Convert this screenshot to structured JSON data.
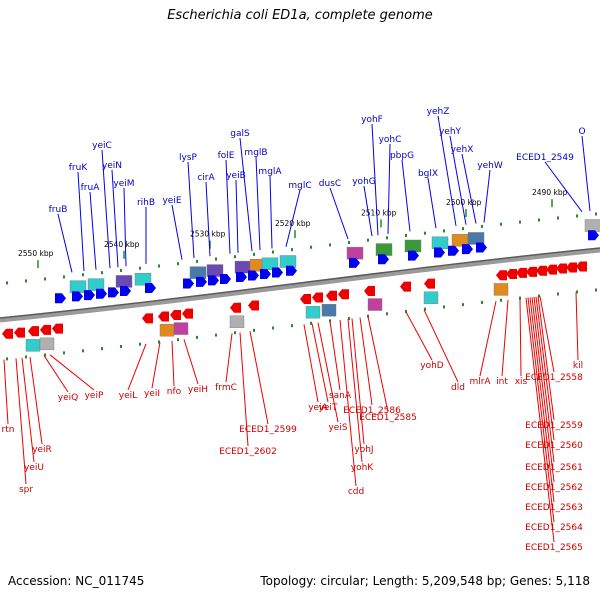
{
  "title": "Escherichia coli ED1a, complete genome",
  "footer": {
    "accession": "Accession: NC_011745",
    "summary": "Topology: circular; Length: 5,209,548 bp; Genes: 5,118"
  },
  "colors": {
    "forward_gene": "#0000ee",
    "reverse_gene": "#ee0000",
    "label_forward": "#0000cc",
    "label_reverse": "#cc0000",
    "axis": "#888888",
    "tick": "#228b22",
    "cyan_feature": "#33cccc",
    "purple_feature": "#aa55cc"
  },
  "scale_labels": [
    "2550 kbp",
    "2540 kbp",
    "2530 kbp",
    "2520 kbp",
    "2510 kbp",
    "2500 kbp",
    "2490 kbp"
  ],
  "forward_labels": [
    "fruB",
    "fruA",
    "fruK",
    "yeiC",
    "yeiN",
    "yeiM",
    "rihB",
    "yeiE",
    "lysP",
    "cirA",
    "folE",
    "yeiB",
    "galS",
    "mglB",
    "mglA",
    "mglC",
    "dusC",
    "yohF",
    "yohG",
    "yohC",
    "pbpG",
    "bglX",
    "yehZ",
    "yehY",
    "yehX",
    "yehW",
    "ECED1_2549",
    "O"
  ],
  "reverse_labels": [
    "rtn",
    "spr",
    "yeiU",
    "yeiR",
    "yeiQ",
    "yeiP",
    "yeiL",
    "yeiI",
    "nfo",
    "yeiH",
    "frmC",
    "ECED1_2602",
    "ECED1_2599",
    "yeiA",
    "yeiT",
    "yeiS",
    "sanA",
    "cdd",
    "yohK",
    "yohJ",
    "ECED1_2586",
    "ECED1_2585",
    "yohD",
    "dld",
    "mlrA",
    "int",
    "xis",
    "kil",
    "ECED1_2558",
    "ECED1_2559",
    "ECED1_2560",
    "ECED1_2561",
    "ECED1_2562",
    "ECED1_2563",
    "ECED1_2564",
    "ECED1_2565"
  ]
}
